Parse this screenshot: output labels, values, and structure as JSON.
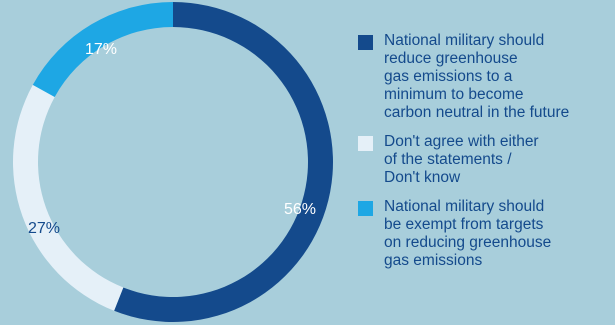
{
  "chart_data": {
    "type": "pie",
    "donut": true,
    "categories": [
      "National military should\nreduce greenhouse\ngas emissions to a\nminimum to become\ncarbon neutral in the future",
      "Don't agree with either\nof the statements /\nDon't know",
      "National military should\nbe exempt from targets\non reducing greenhouse\ngas emissions"
    ],
    "values": [
      56,
      27,
      17
    ],
    "value_labels": [
      "56%",
      "27%",
      "17%"
    ],
    "colors": [
      "#144a8c",
      "#e5f0f8",
      "#1ea7e4"
    ],
    "label_colors": [
      "#ffffff",
      "#144a8c",
      "#ffffff"
    ],
    "legend_position": "right"
  }
}
